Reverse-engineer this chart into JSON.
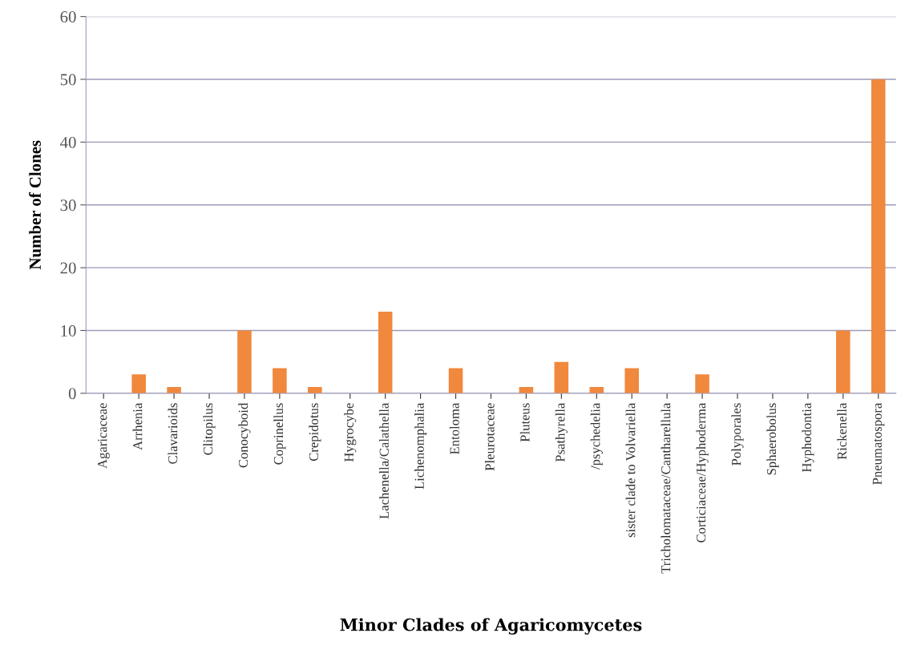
{
  "chart_data": {
    "type": "bar",
    "xlabel": "Minor Clades of Agaricomycetes",
    "ylabel": "Number of Clones",
    "categories": [
      "Agaricaceae",
      "Arrhenia",
      "Clavarioids",
      "Clitopilus",
      "Conocyboid",
      "Coprinellus",
      "Crepidotus",
      "Hygrocybe",
      "Lachenella/Calathella",
      "Lichenomphalia",
      "Entoloma",
      "Pleurotaceae",
      "Pluteus",
      "Psathyrella",
      "/psychedelia",
      "sister clade to Volvariella",
      "Tricholomataceae/Cantharellula",
      "Corticiaceae/Hyphoderma",
      "Polyporales",
      "Sphaerobolus",
      "Hyphodontia",
      "Rickenella",
      "Pneumatospora"
    ],
    "values": [
      0,
      3,
      1,
      0,
      10,
      4,
      1,
      0,
      13,
      0,
      4,
      0,
      1,
      5,
      1,
      4,
      0,
      3,
      0,
      0,
      0,
      10,
      50
    ],
    "color": "#f0883e",
    "ylim": [
      0,
      60
    ],
    "yticks": [
      0,
      10,
      20,
      30,
      40,
      50,
      60
    ],
    "grid": "y"
  }
}
